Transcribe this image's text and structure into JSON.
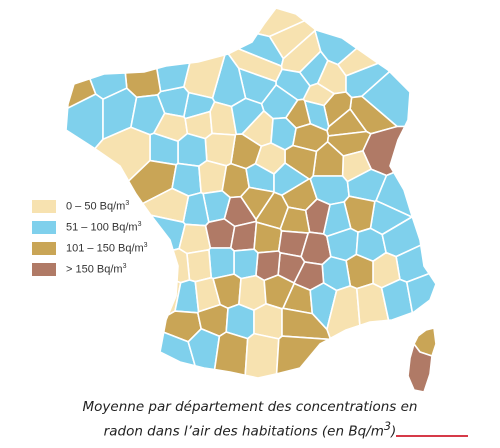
{
  "legend": {
    "items": [
      {
        "range": "0 – 50 Bq/m",
        "sup": "3",
        "color": "#f7e2b0"
      },
      {
        "range": "51 – 100 Bq/m",
        "sup": "3",
        "color": "#7fd0ec"
      },
      {
        "range": "101 – 150 Bq/m",
        "sup": "3",
        "color": "#c9a556"
      },
      {
        "range": "> 150 Bq/m",
        "sup": "3",
        "color": "#b07a66"
      }
    ]
  },
  "caption": {
    "line1": "Moyenne par département des concentrations en",
    "line2_text": "radon dans l’air des habitations (en Bq/m",
    "line2_sup": "3",
    "line2_end": ")"
  },
  "colors": {
    "c0": "#f7e2b0",
    "c1": "#7fd0ec",
    "c2": "#c9a556",
    "c3": "#b07a66",
    "border": "#ffffff",
    "accent_rule": "#d63a48"
  }
}
